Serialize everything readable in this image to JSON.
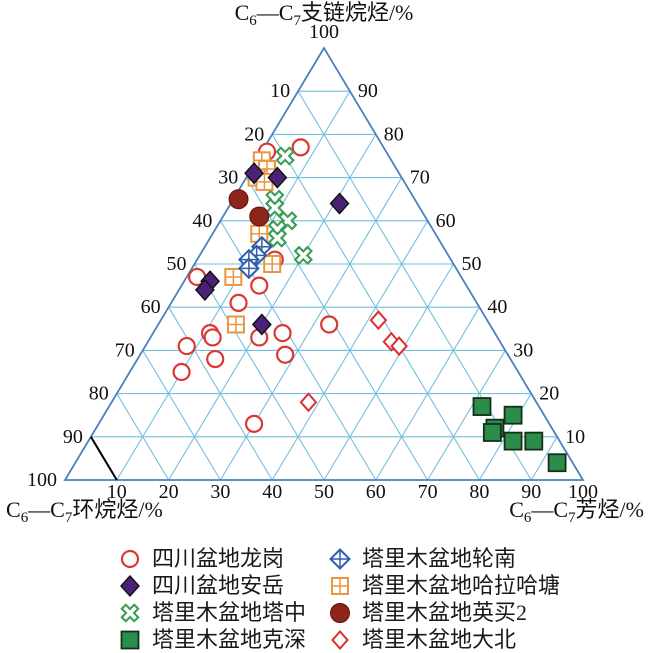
{
  "figure": {
    "axes": {
      "top_label": {
        "parts": [
          {
            "t": "C"
          },
          {
            "t": "6",
            "sub": true
          },
          {
            "t": "—C"
          },
          {
            "t": "7",
            "sub": true
          },
          {
            "t": "支链烷烃/%"
          }
        ]
      },
      "left_label": {
        "parts": [
          {
            "t": "C"
          },
          {
            "t": "6",
            "sub": true
          },
          {
            "t": "—C"
          },
          {
            "t": "7",
            "sub": true
          },
          {
            "t": "环烷烃/%"
          }
        ]
      },
      "right_label": {
        "parts": [
          {
            "t": "C"
          },
          {
            "t": "6",
            "sub": true
          },
          {
            "t": "—C"
          },
          {
            "t": "7",
            "sub": true
          },
          {
            "t": "芳烃/%"
          }
        ]
      },
      "apex_tick": "100",
      "left_ticks": [
        10,
        20,
        30,
        40,
        50,
        60,
        70,
        80,
        90,
        100
      ],
      "right_ticks": [
        90,
        80,
        70,
        60,
        50,
        40,
        30,
        20,
        10
      ],
      "bottom_ticks": [
        10,
        20,
        30,
        40,
        50,
        60,
        70,
        80,
        90,
        100
      ]
    },
    "grid_color": "#74bede",
    "edge_color": "#4a80c0",
    "tick_color": "#111111"
  },
  "chart_data": {
    "type": "scatter",
    "subtype": "ternary",
    "axis_range": [
      0,
      100
    ],
    "grid_interval": 10,
    "grid": true,
    "legend_position": "bottom",
    "point_format": "[branched_alkane_pct, cycloalkane_pct, aromatic_pct]",
    "series": [
      {
        "key": "longgang",
        "name": "四川盆地龙岗",
        "marker": "open-circle",
        "color": "#da3832",
        "points": [
          [
            76,
            23,
            1
          ],
          [
            77,
            16,
            7
          ],
          [
            51,
            34,
            15
          ],
          [
            45,
            40,
            15
          ],
          [
            41,
            46,
            13
          ],
          [
            47,
            51,
            2
          ],
          [
            34,
            55,
            11
          ],
          [
            33,
            55,
            12
          ],
          [
            31,
            61,
            8
          ],
          [
            33,
            46,
            21
          ],
          [
            34,
            41,
            25
          ],
          [
            29,
            43,
            28
          ],
          [
            28,
            57,
            15
          ],
          [
            25,
            65,
            10
          ],
          [
            36,
            31,
            33
          ],
          [
            13,
            57,
            30
          ]
        ]
      },
      {
        "key": "anyue",
        "name": "四川盆地安岳",
        "marker": "filled-diamond",
        "color": "#4b2178",
        "points": [
          [
            71,
            28,
            1
          ],
          [
            70,
            24,
            6
          ],
          [
            64,
            15,
            21
          ],
          [
            46,
            49,
            5
          ],
          [
            44,
            51,
            5
          ],
          [
            36,
            44,
            20
          ]
        ]
      },
      {
        "key": "tazhong",
        "name": "塔里木盆地塔中",
        "marker": "cross-x",
        "color": "#3c9e55",
        "points": [
          [
            75,
            20,
            5
          ],
          [
            65,
            27,
            8
          ],
          [
            63,
            28,
            9
          ],
          [
            60,
            27,
            13
          ],
          [
            58,
            30,
            12
          ],
          [
            56,
            31,
            13
          ],
          [
            52,
            28,
            20
          ]
        ]
      },
      {
        "key": "keshen",
        "name": "塔里木盆地克深",
        "marker": "filled-square",
        "color": "#2c8c49",
        "points": [
          [
            17,
            11,
            72
          ],
          [
            15,
            6,
            79
          ],
          [
            12,
            11,
            77
          ],
          [
            11,
            12,
            77
          ],
          [
            9,
            9,
            82
          ],
          [
            9,
            5,
            86
          ],
          [
            4,
            3,
            93
          ]
        ]
      },
      {
        "key": "lunnan",
        "name": "塔里木盆地轮南",
        "marker": "crossed-diamond",
        "color": "#2c5fae",
        "points": [
          [
            54,
            35,
            11
          ],
          [
            52,
            37,
            11
          ],
          [
            51,
            39,
            10
          ],
          [
            49,
            40,
            11
          ]
        ]
      },
      {
        "key": "halahatang",
        "name": "塔里木盆地哈拉哈塘",
        "marker": "grid-square",
        "color": "#ea9540",
        "points": [
          [
            74,
            25,
            1
          ],
          [
            72,
            25,
            3
          ],
          [
            70,
            28,
            2
          ],
          [
            69,
            27,
            4
          ],
          [
            57,
            34,
            9
          ],
          [
            50,
            35,
            15
          ],
          [
            47,
            44,
            9
          ],
          [
            36,
            49,
            15
          ]
        ]
      },
      {
        "key": "yingmai2",
        "name": "塔里木盆地英买2",
        "marker": "filled-circle",
        "color": "#8e251b",
        "points": [
          [
            65,
            34,
            1
          ],
          [
            61,
            32,
            7
          ]
        ]
      },
      {
        "key": "dabei",
        "name": "塔里木盆地大北",
        "marker": "open-diamond",
        "color": "#d92f2f",
        "points": [
          [
            37,
            21,
            42
          ],
          [
            32,
            21,
            47
          ],
          [
            31,
            20,
            49
          ],
          [
            18,
            44,
            38
          ]
        ]
      }
    ],
    "draw_order": [
      0,
      7,
      2,
      5,
      1,
      4,
      6,
      3
    ],
    "annotation_line": {
      "from": [
        10,
        90,
        0
      ],
      "to": [
        0,
        90,
        10
      ],
      "color": "#000000"
    }
  }
}
